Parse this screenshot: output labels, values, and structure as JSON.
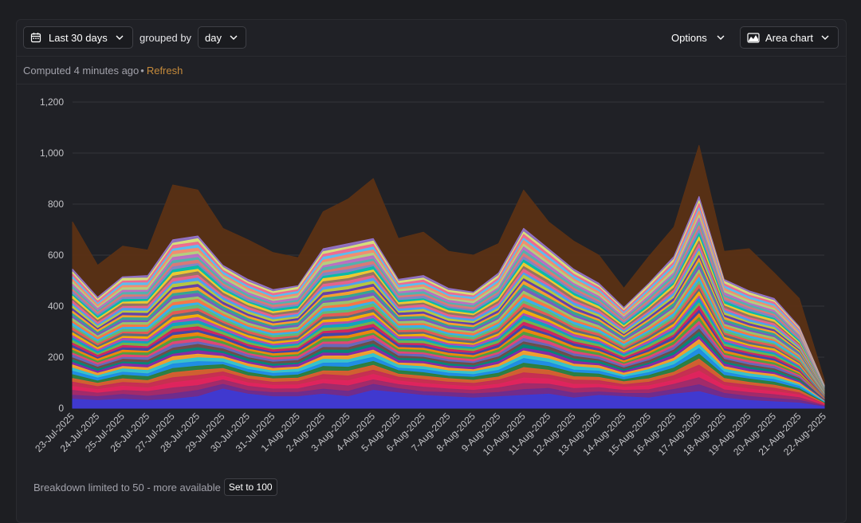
{
  "toolbar": {
    "date_range_label": "Last 30 days",
    "grouped_by_label": "grouped by",
    "interval_label": "day",
    "options_label": "Options",
    "chart_type_label": "Area chart"
  },
  "status": {
    "computed_text": "Computed 4 minutes ago",
    "separator": "•",
    "refresh_label": "Refresh"
  },
  "footer": {
    "breakdown_text": "Breakdown limited to 50 - more available",
    "set_button_label": "Set to 100"
  },
  "colors": {
    "background": "#1d1e22",
    "refresh_link": "#c58a3b",
    "top_series": "#5b3114",
    "palette": [
      "#3b3bd6",
      "#6b2c8f",
      "#9b2c6b",
      "#e0245e",
      "#c42b55",
      "#e25d2f",
      "#2e7d32",
      "#1e88e5",
      "#26c6da",
      "#f9a825",
      "#8e24aa",
      "#00897b",
      "#6d4c41",
      "#5c6bc0",
      "#ec407a",
      "#43a047",
      "#fb8c00",
      "#3949ab",
      "#d81b60",
      "#7cb342",
      "#00acc1",
      "#ab47bc",
      "#ffb300",
      "#546e7a",
      "#ef5350",
      "#66bb6a",
      "#29b6f6",
      "#ff7043",
      "#9ccc65",
      "#7e57c2",
      "#26a69a",
      "#ffa726",
      "#5e35b1",
      "#c0ca33",
      "#42a5f5",
      "#ec6090",
      "#8d6e63",
      "#ffca28",
      "#00bfa5",
      "#7986cb",
      "#e57373",
      "#4db6ac",
      "#ba68c8",
      "#aed581",
      "#ff8a65",
      "#4fc3f7",
      "#f06292",
      "#dce775",
      "#9575cd",
      "#4dd0e1"
    ]
  },
  "chart_data": {
    "type": "area",
    "stacked": true,
    "x": [
      "23-Jul-2025",
      "24-Jul-2025",
      "25-Jul-2025",
      "26-Jul-2025",
      "27-Jul-2025",
      "28-Jul-2025",
      "29-Jul-2025",
      "30-Jul-2025",
      "31-Jul-2025",
      "1-Aug-2025",
      "2-Aug-2025",
      "3-Aug-2025",
      "4-Aug-2025",
      "5-Aug-2025",
      "6-Aug-2025",
      "7-Aug-2025",
      "8-Aug-2025",
      "9-Aug-2025",
      "10-Aug-2025",
      "11-Aug-2025",
      "12-Aug-2025",
      "13-Aug-2025",
      "14-Aug-2025",
      "15-Aug-2025",
      "16-Aug-2025",
      "17-Aug-2025",
      "18-Aug-2025",
      "19-Aug-2025",
      "20-Aug-2025",
      "21-Aug-2025",
      "22-Aug-2025"
    ],
    "ylim": [
      0,
      1200
    ],
    "yticks": [
      0,
      200,
      400,
      600,
      800,
      1000,
      1200
    ],
    "ytick_labels": [
      "0",
      "200",
      "400",
      "600",
      "800",
      "1,000",
      "1,200"
    ],
    "grid": true,
    "legend": "none",
    "series_count": 50,
    "totals": [
      730,
      560,
      635,
      620,
      875,
      855,
      705,
      660,
      610,
      590,
      770,
      820,
      900,
      665,
      690,
      615,
      600,
      645,
      855,
      730,
      655,
      600,
      470,
      595,
      710,
      1030,
      615,
      625,
      530,
      430,
      110
    ],
    "top_series_totals": [
      545,
      435,
      515,
      520,
      660,
      675,
      560,
      505,
      465,
      480,
      625,
      645,
      665,
      505,
      520,
      470,
      455,
      530,
      705,
      625,
      545,
      490,
      395,
      490,
      595,
      830,
      505,
      460,
      430,
      320,
      90
    ],
    "bottom_series_values": [
      35,
      30,
      35,
      30,
      35,
      45,
      75,
      55,
      45,
      45,
      55,
      45,
      70,
      60,
      50,
      45,
      40,
      45,
      50,
      55,
      40,
      50,
      45,
      40,
      55,
      65,
      40,
      30,
      25,
      20,
      5
    ]
  }
}
